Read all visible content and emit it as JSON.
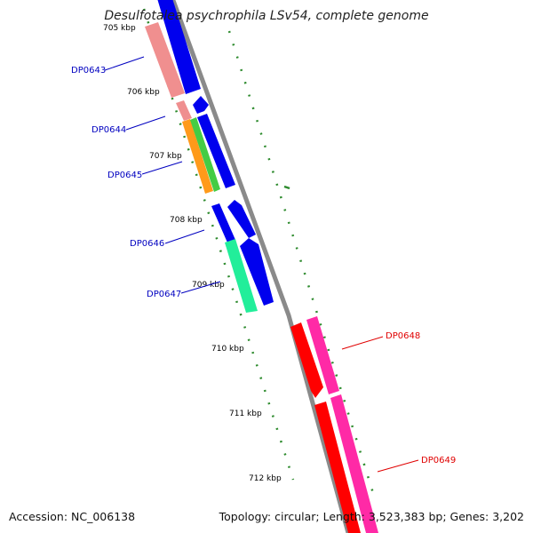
{
  "title": "Desulfotalea psychrophila LSv54, complete genome",
  "footer": {
    "accession": "Accession: NC_006138",
    "summary": "Topology: circular; Length: 3,523,383 bp; Genes: 3,202"
  },
  "colors": {
    "backbone": "#8a8a8a",
    "tick": "#2e8b2e",
    "forward_label": "#0000c0",
    "reverse_label": "#e00000"
  },
  "kbp_ticks": [
    "705 kbp",
    "706 kbp",
    "707 kbp",
    "708 kbp",
    "709 kbp",
    "710 kbp",
    "711 kbp",
    "712 kbp"
  ],
  "genes": [
    {
      "id": "DP0643",
      "color": "#f08f8f",
      "label_color": "#0000c0"
    },
    {
      "id": "DP0644",
      "color": "#ef8f8f",
      "label_color": "#0000c0"
    },
    {
      "id": "DP0645",
      "color": "#ff9a1a",
      "label_color": "#0000c0"
    },
    {
      "id": "DP0646",
      "color": "#0000ee",
      "label_color": "#0000c0"
    },
    {
      "id": "DP0647",
      "color": "#22ee9a",
      "label_color": "#0000c0"
    },
    {
      "id": "DP0648",
      "color": "#ff2aa6",
      "label_color": "#e00000"
    },
    {
      "id": "DP0649",
      "color": "#ff2aa6",
      "label_color": "#e00000"
    }
  ]
}
